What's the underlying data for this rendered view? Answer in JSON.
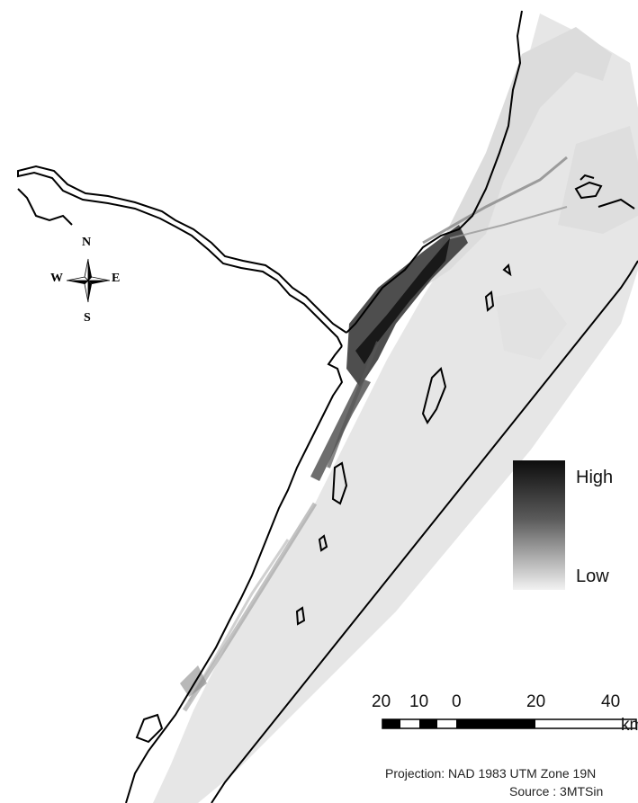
{
  "compass": {
    "n": "N",
    "s": "S",
    "e": "E",
    "w": "W"
  },
  "legend": {
    "high": "High",
    "low": "Low"
  },
  "scale": {
    "ticks": [
      "20",
      "10",
      "0",
      "20",
      "40"
    ],
    "unit": "km"
  },
  "footer": {
    "projection": "Projection: NAD 1983 UTM Zone 19N",
    "source": "Source : 3MTSin"
  }
}
